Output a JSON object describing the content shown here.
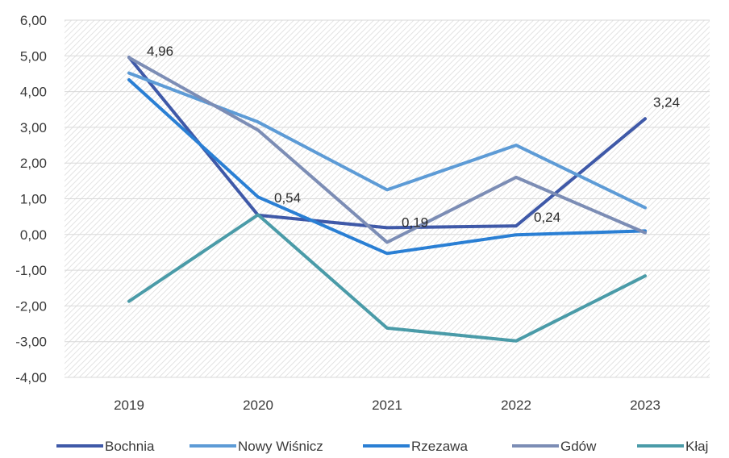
{
  "chart_data": {
    "type": "line",
    "title": "",
    "xlabel": "",
    "ylabel": "",
    "categories": [
      "2019",
      "2020",
      "2021",
      "2022",
      "2023"
    ],
    "ylim": [
      -4,
      6
    ],
    "ytick_step": 1,
    "ytick_labels": [
      "-4,00",
      "-3,00",
      "-2,00",
      "-1,00",
      "0,00",
      "1,00",
      "2,00",
      "3,00",
      "4,00",
      "5,00",
      "6,00"
    ],
    "grid": true,
    "plot_background": "diagonal hatch",
    "legend_position": "bottom",
    "series": [
      {
        "name": "Bochnia",
        "color": "#3f59a8",
        "values": [
          4.96,
          0.54,
          0.19,
          0.24,
          3.24
        ]
      },
      {
        "name": "Nowy Wiśnicz",
        "color": "#5d9bd6",
        "values": [
          4.52,
          3.15,
          1.25,
          2.5,
          0.75
        ]
      },
      {
        "name": "Rzezawa",
        "color": "#2a7fd4",
        "values": [
          4.33,
          1.05,
          -0.53,
          -0.01,
          0.1
        ]
      },
      {
        "name": "Gdów",
        "color": "#7c8db5",
        "values": [
          4.95,
          2.92,
          -0.22,
          1.6,
          0.05
        ]
      },
      {
        "name": "Kłaj",
        "color": "#4a9ba8",
        "values": [
          -1.87,
          0.55,
          -2.62,
          -2.98,
          -1.16
        ]
      }
    ],
    "data_labels": [
      {
        "series": "Bochnia",
        "index": 0,
        "text": "4,96"
      },
      {
        "series": "Bochnia",
        "index": 1,
        "text": "0,54"
      },
      {
        "series": "Bochnia",
        "index": 2,
        "text": "0,19"
      },
      {
        "series": "Bochnia",
        "index": 3,
        "text": "0,24"
      },
      {
        "series": "Bochnia",
        "index": 4,
        "text": "3,24"
      }
    ]
  }
}
